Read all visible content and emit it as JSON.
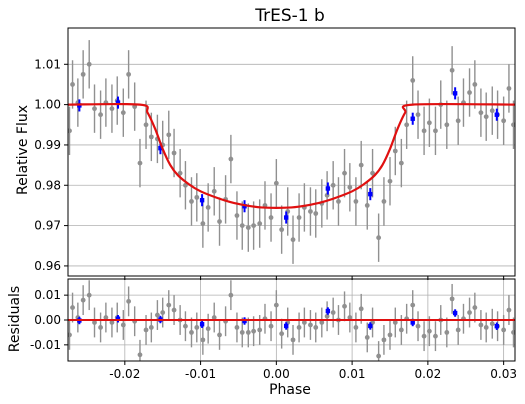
{
  "chart_data": [
    {
      "type": "scatter",
      "panel": "main",
      "title": "TrES-1 b",
      "xlabel": "",
      "ylabel": "Relative Flux",
      "xlim": [
        -0.0275,
        0.0315
      ],
      "ylim": [
        0.9575,
        1.019
      ],
      "x_ticks": [
        -0.02,
        -0.01,
        0.0,
        0.01,
        0.02,
        0.03
      ],
      "x_tick_labels": [
        "",
        "",
        "",
        "",
        "",
        ""
      ],
      "y_ticks": [
        0.96,
        0.97,
        0.98,
        0.99,
        1.0,
        1.01
      ],
      "y_tick_labels": [
        "0.96",
        "0.97",
        "0.98",
        "0.99",
        "1.00",
        "1.01"
      ],
      "grid": "horizontal",
      "legend": "none",
      "colors": {
        "data": "#909090",
        "binned": "#0000ff",
        "model": "#e01010",
        "grid": "#b0b0b0"
      },
      "model": {
        "name": "",
        "x": [
          -0.0275,
          -0.018,
          -0.017,
          -0.016,
          -0.015,
          -0.014,
          -0.013,
          -0.0115,
          -0.01,
          -0.008,
          -0.006,
          -0.004,
          -0.002,
          0.0,
          0.002,
          0.004,
          0.006,
          0.008,
          0.01,
          0.0115,
          0.013,
          0.014,
          0.015,
          0.016,
          0.017,
          0.018,
          0.0315
        ],
        "y": [
          1.0,
          1.0,
          0.998,
          0.994,
          0.989,
          0.985,
          0.9825,
          0.9802,
          0.9785,
          0.977,
          0.9758,
          0.975,
          0.9745,
          0.9744,
          0.9745,
          0.975,
          0.9758,
          0.977,
          0.9785,
          0.9802,
          0.9825,
          0.985,
          0.989,
          0.994,
          0.998,
          1.0,
          1.0
        ]
      },
      "series": [
        {
          "name": "",
          "x": [
            -0.0273,
            -0.0269,
            -0.0262,
            -0.0255,
            -0.0247,
            -0.024,
            -0.0232,
            -0.0225,
            -0.0217,
            -0.021,
            -0.0202,
            -0.0195,
            -0.0187,
            -0.018,
            -0.0172,
            -0.0165,
            -0.0157,
            -0.015,
            -0.0142,
            -0.0135,
            -0.0127,
            -0.012,
            -0.0112,
            -0.0105,
            -0.0097,
            -0.009,
            -0.0082,
            -0.0075,
            -0.0067,
            -0.006,
            -0.0052,
            -0.0045,
            -0.0037,
            -0.003,
            -0.0022,
            -0.0015,
            -0.0007,
            0.0,
            0.0007,
            0.0015,
            0.0022,
            0.003,
            0.0037,
            0.0045,
            0.0052,
            0.006,
            0.0067,
            0.0075,
            0.0082,
            0.009,
            0.0097,
            0.0105,
            0.0112,
            0.012,
            0.0127,
            0.0135,
            0.0142,
            0.015,
            0.0157,
            0.0165,
            0.0172,
            0.018,
            0.0187,
            0.0195,
            0.0202,
            0.021,
            0.0217,
            0.0225,
            0.0232,
            0.024,
            0.0247,
            0.0255,
            0.0262,
            0.027,
            0.0277,
            0.0285,
            0.0292,
            0.03,
            0.0307,
            0.0313
          ],
          "y": [
            0.9935,
            1.005,
            1.0005,
            1.0075,
            1.01,
            0.999,
            0.9975,
            1.0005,
            0.999,
            1.001,
            0.998,
            1.0075,
            0.9995,
            0.9855,
            0.995,
            0.992,
            0.9915,
            0.99,
            0.9925,
            0.988,
            0.983,
            0.98,
            0.976,
            0.977,
            0.9705,
            0.9745,
            0.9785,
            0.971,
            0.9765,
            0.9865,
            0.9725,
            0.97,
            0.9695,
            0.97,
            0.9705,
            0.975,
            0.972,
            0.9805,
            0.969,
            0.9735,
            0.9665,
            0.972,
            0.9745,
            0.9735,
            0.973,
            0.9755,
            0.9775,
            0.98,
            0.976,
            0.983,
            0.9795,
            0.976,
            0.985,
            0.975,
            0.983,
            0.967,
            0.976,
            0.981,
            0.9885,
            0.9855,
            0.995,
            1.006,
            0.9975,
            0.9935,
            0.9955,
            0.9935,
            1.0,
            0.995,
            1.0085,
            0.996,
            1.0005,
            1.003,
            1.005,
            0.998,
            0.997,
            0.9985,
            0.9975,
            0.996,
            1.004,
            0.995
          ],
          "yerr": 0.006
        },
        {
          "name": "",
          "x": [
            -0.026,
            -0.0209,
            -0.0153,
            -0.0098,
            -0.0042,
            0.0013,
            0.0068,
            0.0124,
            0.018,
            0.0236,
            0.0291
          ],
          "y": [
            0.9998,
            1.0005,
            0.9892,
            0.9763,
            0.9748,
            0.972,
            0.9792,
            0.9778,
            0.9965,
            1.0028,
            0.9975
          ],
          "yerr": 0.0015
        }
      ]
    },
    {
      "type": "scatter",
      "panel": "residuals",
      "title": "",
      "xlabel": "Phase",
      "ylabel": "Residuals",
      "xlim": [
        -0.0275,
        0.0315
      ],
      "ylim": [
        -0.0165,
        0.0165
      ],
      "x_ticks": [
        -0.02,
        -0.01,
        0.0,
        0.01,
        0.02,
        0.03
      ],
      "x_tick_labels": [
        "-0.02",
        "-0.01",
        "0.00",
        "0.01",
        "0.02",
        "0.03"
      ],
      "y_ticks": [
        -0.01,
        0.0,
        0.01
      ],
      "y_tick_labels": [
        "-0.01",
        "0.00",
        "0.01"
      ],
      "grid": "both",
      "legend": "none",
      "zero_line": 0,
      "series": [
        {
          "name": "",
          "x": [
            -0.0273,
            -0.0269,
            -0.0262,
            -0.0255,
            -0.0247,
            -0.024,
            -0.0232,
            -0.0225,
            -0.0217,
            -0.021,
            -0.0202,
            -0.0195,
            -0.0187,
            -0.018,
            -0.0172,
            -0.0165,
            -0.0157,
            -0.015,
            -0.0142,
            -0.0135,
            -0.0127,
            -0.012,
            -0.0112,
            -0.0105,
            -0.0097,
            -0.009,
            -0.0082,
            -0.0075,
            -0.0067,
            -0.006,
            -0.0052,
            -0.0045,
            -0.0037,
            -0.003,
            -0.0022,
            -0.0015,
            -0.0007,
            0.0,
            0.0007,
            0.0015,
            0.0022,
            0.003,
            0.0037,
            0.0045,
            0.0052,
            0.006,
            0.0067,
            0.0075,
            0.0082,
            0.009,
            0.0097,
            0.0105,
            0.0112,
            0.012,
            0.0127,
            0.0135,
            0.0142,
            0.015,
            0.0157,
            0.0165,
            0.0172,
            0.018,
            0.0187,
            0.0195,
            0.0202,
            0.021,
            0.0217,
            0.0225,
            0.0232,
            0.024,
            0.0247,
            0.0255,
            0.0262,
            0.027,
            0.0277,
            0.0285,
            0.0292,
            0.03,
            0.0307,
            0.0313
          ],
          "y": [
            -0.006,
            0.005,
            0.001,
            0.008,
            0.01,
            -0.001,
            -0.003,
            0.001,
            -0.001,
            0.001,
            -0.002,
            0.0075,
            -0.0005,
            -0.014,
            -0.004,
            -0.003,
            0.002,
            0.003,
            0.006,
            0.004,
            0.0,
            -0.0025,
            -0.005,
            -0.003,
            -0.008,
            -0.0035,
            0.001,
            -0.006,
            -0.0005,
            0.01,
            -0.003,
            -0.005,
            -0.005,
            -0.0045,
            -0.004,
            0.0005,
            -0.0025,
            0.006,
            -0.0055,
            -0.001,
            -0.008,
            -0.003,
            -0.001,
            -0.002,
            -0.003,
            -0.001,
            0.0015,
            0.003,
            0.0,
            0.0055,
            0.001,
            -0.003,
            0.0045,
            -0.007,
            -0.001,
            -0.0145,
            -0.008,
            -0.006,
            -0.001,
            -0.004,
            0.0005,
            0.006,
            -0.0025,
            -0.0065,
            -0.0045,
            -0.0065,
            0.0,
            -0.005,
            0.0085,
            -0.004,
            0.0005,
            0.003,
            0.005,
            -0.002,
            -0.003,
            -0.0015,
            -0.0025,
            -0.004,
            0.004,
            -0.005
          ],
          "yerr": 0.006
        },
        {
          "name": "",
          "x": [
            -0.026,
            -0.0209,
            -0.0153,
            -0.0098,
            -0.0042,
            0.0013,
            0.0068,
            0.0124,
            0.018,
            0.0236,
            0.0291
          ],
          "y": [
            -0.0002,
            0.0005,
            0.0002,
            -0.0017,
            -0.0004,
            -0.0024,
            0.0036,
            -0.0024,
            -0.001,
            0.0028,
            -0.0025
          ],
          "yerr": 0.0015
        }
      ]
    }
  ]
}
